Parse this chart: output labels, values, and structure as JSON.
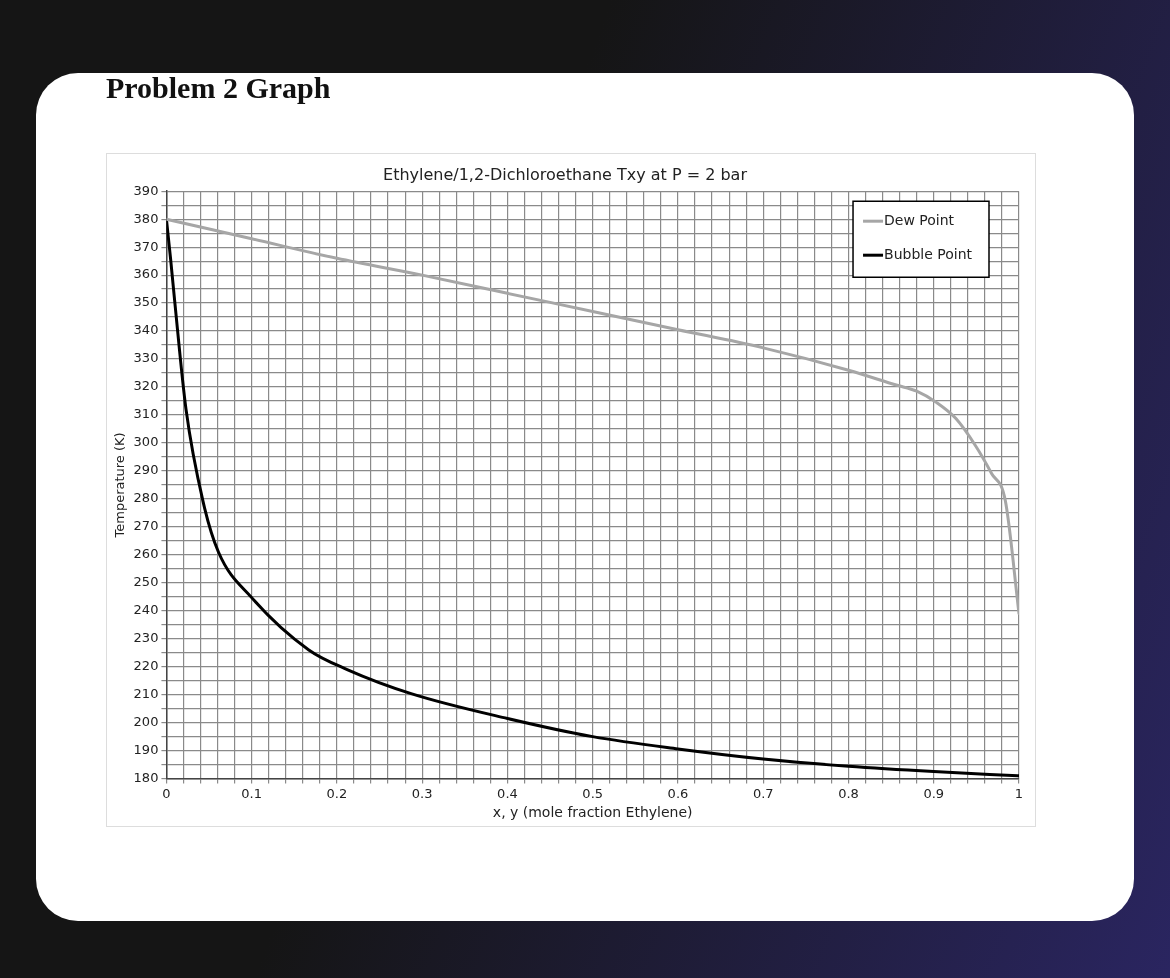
{
  "chart_data": {
    "type": "line",
    "title": "Problem 2 Graph",
    "subtitle": "Ethylene/1,2-Dichloroethane Txy at P = 2 bar",
    "xlabel": "x, y (mole fraction Ethylene)",
    "ylabel": "Temperature (K)",
    "series": [
      {
        "name": "Dew Point",
        "color": "#a6a6a6",
        "x": [
          0,
          0.1,
          0.2,
          0.3,
          0.4,
          0.5,
          0.6,
          0.7,
          0.8,
          0.856,
          0.88,
          0.903,
          0.926,
          0.949,
          0.968,
          0.984,
          1
        ],
        "values": [
          380,
          373,
          366,
          360,
          353.5,
          347,
          340.5,
          334,
          326,
          320.7,
          318.5,
          314.5,
          308.7,
          299,
          289,
          279.3,
          239
        ]
      },
      {
        "name": "Bubble Point",
        "color": "#000000",
        "x": [
          0,
          0.005,
          0.0094,
          0.023,
          0.043,
          0.061,
          0.1,
          0.167,
          0.212,
          0.287,
          0.4,
          0.5,
          0.6,
          0.7,
          0.8,
          0.9,
          1
        ],
        "values": [
          380,
          365.5,
          351.7,
          312,
          279,
          261,
          244.7,
          226,
          219,
          210.4,
          201.5,
          195,
          190.6,
          187,
          184.4,
          182.5,
          181
        ]
      }
    ],
    "xlim": [
      0,
      1
    ],
    "ylim": [
      180,
      390
    ],
    "xticks": [
      0,
      {
        "value": 0.02,
        "label": null
      },
      {
        "value": 0.04,
        "label": null
      },
      {
        "value": 0.06,
        "label": null
      },
      {
        "value": 0.08,
        "label": null
      },
      0.1,
      {
        "value": 0.12,
        "label": null
      },
      {
        "value": 0.14,
        "label": null
      },
      {
        "value": 0.16,
        "label": null
      },
      {
        "value": 0.18,
        "label": null
      },
      0.2,
      {
        "value": 0.22,
        "label": null
      },
      {
        "value": 0.24,
        "label": null
      },
      {
        "value": 0.26,
        "label": null
      },
      {
        "value": 0.28,
        "label": null
      },
      0.3,
      {
        "value": 0.32,
        "label": null
      },
      {
        "value": 0.34,
        "label": null
      },
      {
        "value": 0.36,
        "label": null
      },
      {
        "value": 0.38,
        "label": null
      },
      0.4,
      {
        "value": 0.42,
        "label": null
      },
      {
        "value": 0.44,
        "label": null
      },
      {
        "value": 0.46,
        "label": null
      },
      {
        "value": 0.48,
        "label": null
      },
      0.5,
      {
        "value": 0.52,
        "label": null
      },
      {
        "value": 0.54,
        "label": null
      },
      {
        "value": 0.56,
        "label": null
      },
      {
        "value": 0.58,
        "label": null
      },
      0.6,
      {
        "value": 0.62,
        "label": null
      },
      {
        "value": 0.64,
        "label": null
      },
      {
        "value": 0.66,
        "label": null
      },
      {
        "value": 0.68,
        "label": null
      },
      0.7,
      {
        "value": 0.72,
        "label": null
      },
      {
        "value": 0.74,
        "label": null
      },
      {
        "value": 0.76,
        "label": null
      },
      {
        "value": 0.78,
        "label": null
      },
      0.8,
      {
        "value": 0.82,
        "label": null
      },
      {
        "value": 0.84,
        "label": null
      },
      {
        "value": 0.86,
        "label": null
      },
      {
        "value": 0.88,
        "label": null
      },
      0.9,
      {
        "value": 0.92,
        "label": null
      },
      {
        "value": 0.94,
        "label": null
      },
      {
        "value": 0.96,
        "label": null
      },
      {
        "value": 0.98,
        "label": null
      },
      1
    ],
    "yticks": [
      180,
      {
        "value": 185,
        "label": null
      },
      190,
      {
        "value": 195,
        "label": null
      },
      200,
      {
        "value": 205,
        "label": null
      },
      210,
      {
        "value": 215,
        "label": null
      },
      220,
      {
        "value": 225,
        "label": null
      },
      230,
      {
        "value": 235,
        "label": null
      },
      240,
      {
        "value": 245,
        "label": null
      },
      250,
      {
        "value": 255,
        "label": null
      },
      260,
      {
        "value": 265,
        "label": null
      },
      270,
      {
        "value": 275,
        "label": null
      },
      280,
      {
        "value": 285,
        "label": null
      },
      290,
      {
        "value": 295,
        "label": null
      },
      300,
      {
        "value": 305,
        "label": null
      },
      310,
      {
        "value": 315,
        "label": null
      },
      320,
      {
        "value": 325,
        "label": null
      },
      330,
      {
        "value": 335,
        "label": null
      },
      340,
      {
        "value": 345,
        "label": null
      },
      350,
      {
        "value": 355,
        "label": null
      },
      360,
      {
        "value": 365,
        "label": null
      },
      370,
      {
        "value": 375,
        "label": null
      },
      380,
      {
        "value": 385,
        "label": null
      },
      390
    ],
    "grid": true,
    "legend": "top right",
    "marker": "none",
    "line_style": "solid"
  }
}
